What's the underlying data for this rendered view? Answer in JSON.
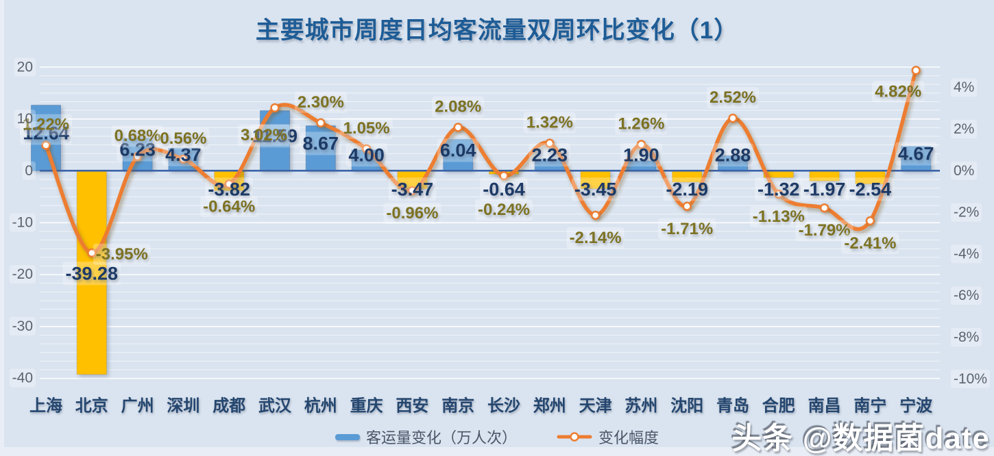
{
  "title": "主要城市周度日均客流量双周环比变化（1）",
  "watermark": "头条 @数据菌date",
  "legend": {
    "bar_series": "客运量变化（万人次）",
    "line_series": "变化幅度"
  },
  "colors": {
    "background": "#dae4f0",
    "bar_positive": "#5b9bd5",
    "bar_negative": "#ffc000",
    "trend_line": "#ed7d31",
    "marker_fill": "#fdfdfd",
    "zero_line": "#3b63a8",
    "gridline": "#ffffff",
    "title_text": "#1e5c96",
    "bar_label_text": "#1d3a66",
    "pct_label_text": "#7d7222",
    "city_label_text": "#24466f",
    "axis_tick_text": "#5b6370",
    "legend_text": "#4a5568"
  },
  "chart_data": {
    "type": "combo-bar-line",
    "title": "主要城市周度日均客流量双周环比变化（1）",
    "categories": [
      "上海",
      "北京",
      "广州",
      "深圳",
      "成都",
      "武汉",
      "杭州",
      "重庆",
      "西安",
      "南京",
      "长沙",
      "郑州",
      "天津",
      "苏州",
      "沈阳",
      "青岛",
      "合肥",
      "南昌",
      "南宁",
      "宁波"
    ],
    "series": [
      {
        "name": "客运量变化（万人次）",
        "type": "bar",
        "axis": "left",
        "values": [
          12.64,
          -39.28,
          6.23,
          4.37,
          -3.82,
          11.59,
          8.67,
          4.0,
          -3.47,
          6.04,
          -0.64,
          2.23,
          -3.45,
          1.9,
          -2.19,
          2.88,
          -1.32,
          -1.97,
          -2.54,
          4.67
        ],
        "labels": [
          "12.64",
          "-39.28",
          "6.23",
          "4.37",
          "-3.82",
          "11.59",
          "8.67",
          "4.00",
          "-3.47",
          "6.04",
          "-0.64",
          "2.23",
          "-3.45",
          "1.90",
          "-2.19",
          "2.88",
          "-1.32",
          "-1.97",
          "-2.54",
          "4.67"
        ]
      },
      {
        "name": "变化幅度",
        "type": "line",
        "axis": "right",
        "values": [
          1.22,
          -3.95,
          0.68,
          0.56,
          -0.64,
          3.02,
          2.3,
          1.05,
          -0.96,
          2.08,
          -0.24,
          1.32,
          -2.14,
          1.26,
          -1.71,
          2.52,
          -1.13,
          -1.79,
          -2.41,
          4.82
        ],
        "labels": [
          "1.22%",
          "-3.95%",
          "0.68%",
          "0.56%",
          "-0.64%",
          "3.02%",
          "2.30%",
          "1.05%",
          "-0.96%",
          "2.08%",
          "-0.24%",
          "1.32%",
          "-2.14%",
          "1.26%",
          "-1.71%",
          "2.52%",
          "-1.13%",
          "-1.79%",
          "-2.41%",
          "4.82%"
        ]
      }
    ],
    "left_axis": {
      "tick_labels": [
        "20",
        "10",
        "0",
        "-10",
        "-20",
        "-30",
        "-40"
      ],
      "tick_values": [
        20,
        10,
        0,
        -10,
        -20,
        -30,
        -40
      ],
      "range": [
        -40,
        20
      ]
    },
    "right_axis": {
      "tick_labels": [
        "4%",
        "2%",
        "0%",
        "-2%",
        "-4%",
        "-6%",
        "-8%",
        "-10%"
      ],
      "tick_values": [
        4,
        2,
        0,
        -2,
        -4,
        -6,
        -8,
        -10
      ],
      "range": [
        -10,
        5
      ]
    },
    "grid": "horizontal-minor",
    "legend_position": "bottom"
  }
}
